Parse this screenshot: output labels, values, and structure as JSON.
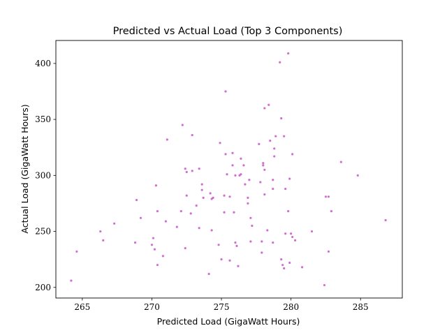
{
  "chart_data": {
    "type": "scatter",
    "title": "Predicted vs Actual Load (Top 3 Components)",
    "xlabel": "Predicted Load (GigaWatt Hours)",
    "ylabel": "Actual Load (GigaWatt Hours)",
    "xlim": [
      263.1,
      288.0
    ],
    "ylim": [
      190.5,
      420.5
    ],
    "xticks": [
      265,
      270,
      275,
      280,
      285
    ],
    "yticks": [
      200,
      250,
      300,
      350,
      400
    ],
    "grid": false,
    "marker_color": "#bf40bf",
    "series": [
      {
        "points": [
          [
            264.2,
            206
          ],
          [
            264.6,
            232
          ],
          [
            266.3,
            250
          ],
          [
            266.5,
            242
          ],
          [
            267.3,
            257
          ],
          [
            268.8,
            240
          ],
          [
            268.9,
            278
          ],
          [
            269.2,
            262
          ],
          [
            270.0,
            238
          ],
          [
            270.1,
            244
          ],
          [
            270.2,
            234
          ],
          [
            270.3,
            291
          ],
          [
            270.4,
            220
          ],
          [
            270.4,
            268
          ],
          [
            270.8,
            228
          ],
          [
            271.0,
            259
          ],
          [
            271.1,
            332
          ],
          [
            271.8,
            254
          ],
          [
            272.1,
            268
          ],
          [
            272.2,
            345
          ],
          [
            272.4,
            306
          ],
          [
            272.4,
            235
          ],
          [
            272.5,
            303
          ],
          [
            272.5,
            282
          ],
          [
            272.8,
            266
          ],
          [
            272.9,
            336
          ],
          [
            272.9,
            304
          ],
          [
            273.2,
            273
          ],
          [
            273.4,
            306
          ],
          [
            273.4,
            253
          ],
          [
            273.6,
            292
          ],
          [
            273.6,
            287
          ],
          [
            273.7,
            280
          ],
          [
            274.1,
            212
          ],
          [
            274.2,
            284
          ],
          [
            274.3,
            279
          ],
          [
            274.4,
            280
          ],
          [
            274.3,
            251
          ],
          [
            274.8,
            238
          ],
          [
            274.9,
            329
          ],
          [
            275.0,
            225
          ],
          [
            275.2,
            282
          ],
          [
            275.2,
            267
          ],
          [
            275.3,
            375
          ],
          [
            275.3,
            319
          ],
          [
            275.4,
            301
          ],
          [
            275.6,
            224
          ],
          [
            275.6,
            281
          ],
          [
            275.8,
            320
          ],
          [
            275.8,
            309
          ],
          [
            275.9,
            267
          ],
          [
            276.0,
            300
          ],
          [
            276.0,
            240
          ],
          [
            276.1,
            237
          ],
          [
            276.2,
            219
          ],
          [
            276.3,
            300
          ],
          [
            276.4,
            301
          ],
          [
            276.4,
            315
          ],
          [
            276.6,
            309
          ],
          [
            276.7,
            292
          ],
          [
            276.9,
            275
          ],
          [
            276.9,
            280
          ],
          [
            277.0,
            296
          ],
          [
            277.1,
            241
          ],
          [
            277.1,
            262
          ],
          [
            277.2,
            255
          ],
          [
            277.7,
            328
          ],
          [
            277.8,
            294
          ],
          [
            277.9,
            241
          ],
          [
            277.9,
            231
          ],
          [
            278.0,
            311
          ],
          [
            278.0,
            309
          ],
          [
            278.1,
            305
          ],
          [
            278.1,
            360
          ],
          [
            278.1,
            283
          ],
          [
            278.3,
            251
          ],
          [
            278.4,
            363
          ],
          [
            278.5,
            331
          ],
          [
            278.7,
            288
          ],
          [
            278.7,
            296
          ],
          [
            278.7,
            240
          ],
          [
            278.8,
            317
          ],
          [
            278.8,
            324
          ],
          [
            278.9,
            335
          ],
          [
            279.2,
            401
          ],
          [
            279.3,
            351
          ],
          [
            279.3,
            225
          ],
          [
            279.4,
            220
          ],
          [
            279.5,
            335
          ],
          [
            279.5,
            217
          ],
          [
            279.6,
            288
          ],
          [
            279.6,
            248
          ],
          [
            279.8,
            409
          ],
          [
            279.8,
            268
          ],
          [
            279.9,
            297
          ],
          [
            279.9,
            222
          ],
          [
            280.0,
            248
          ],
          [
            280.1,
            319
          ],
          [
            280.1,
            245
          ],
          [
            280.3,
            242
          ],
          [
            280.8,
            218
          ],
          [
            281.5,
            250
          ],
          [
            282.4,
            202
          ],
          [
            282.5,
            281
          ],
          [
            282.7,
            281
          ],
          [
            282.7,
            232
          ],
          [
            282.9,
            268
          ],
          [
            283.6,
            312
          ],
          [
            284.8,
            300
          ],
          [
            286.8,
            260
          ]
        ]
      }
    ]
  }
}
